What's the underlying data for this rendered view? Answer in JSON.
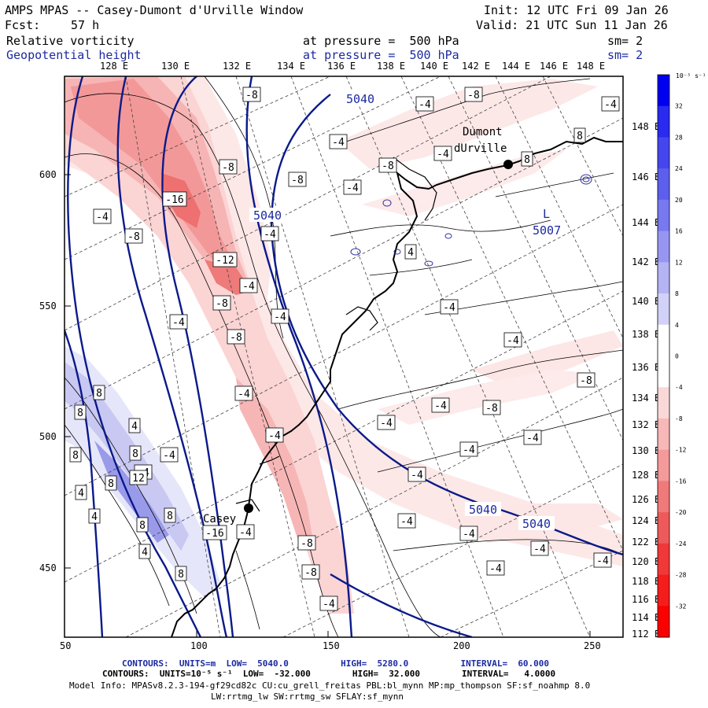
{
  "header": {
    "title": "AMPS MPAS -- Casey-Dumont d'Urville Window",
    "init": "Init: 12 UTC Fri 09 Jan 26",
    "fcst_label": "Fcst:",
    "fcst_value": "57 h",
    "valid": "Valid: 21 UTC Sun 11 Jan 26",
    "field1_name": "Relative vorticity",
    "field1_level": "at pressure =  500 hPa",
    "field1_sm": "sm= 2",
    "field2_name": "Geopotential height",
    "field2_level": "at pressure =  500 hPa",
    "field2_sm": "sm= 2"
  },
  "map": {
    "top_lon_labels": [
      "128 E",
      "130 E",
      "132 E",
      "134 E",
      "136 E",
      "138 E",
      "140 E",
      "142 E",
      "144 E",
      "146 E",
      "148 E"
    ],
    "right_lat_labels": [
      "148 E",
      "146 E",
      "144 E",
      "142 E",
      "140 E",
      "138 E",
      "136 E",
      "134 E",
      "132 E",
      "130 E",
      "128 E",
      "126 E",
      "124 E",
      "122 E",
      "120 E",
      "118 E",
      "116 E",
      "114 E",
      "112 E"
    ],
    "x_ticks": [
      "50",
      "100",
      "150",
      "200",
      "250"
    ],
    "y_ticks": [
      "600",
      "550",
      "500",
      "450"
    ],
    "stations": [
      {
        "name_line1": "Dumont",
        "name_line2": "dUrville"
      },
      {
        "name_line1": "Casey",
        "name_line2": ""
      }
    ],
    "low_label": "L",
    "low_value": "5007",
    "height_labels": [
      "5040",
      "5040",
      "5040",
      "5040"
    ],
    "vort_labels": [
      "-8",
      "-4",
      "-8",
      "-4",
      "-8",
      "-4",
      "-8",
      "-16",
      "-4",
      "-8",
      "-4",
      "-8",
      "-12",
      "-4",
      "-8",
      "-4",
      "-4",
      "-8",
      "-4",
      "-4",
      "-8",
      "-4",
      "-4",
      "-4",
      "-8",
      "-4",
      "-4",
      "-4",
      "-4",
      "-4",
      "-4",
      "-4",
      "-8",
      "-4",
      "-4",
      "-8",
      "-4",
      "-4",
      "-4",
      "-4",
      "8",
      "8",
      "4",
      "8",
      "8",
      "4",
      "8",
      "12",
      "8",
      "4",
      "8",
      "8",
      "4",
      "4",
      "8",
      "8",
      "-16",
      "-4",
      "-4"
    ]
  },
  "colorbar": {
    "unit_label": "10⁻⁵ s⁻¹",
    "ticks": [
      "32",
      "28",
      "24",
      "20",
      "16",
      "12",
      "8",
      "4",
      "0",
      "-4",
      "-8",
      "-12",
      "-16",
      "-20",
      "-24",
      "-28",
      "-32"
    ],
    "colors": [
      "#0000f0",
      "#2a2af0",
      "#4646ee",
      "#5e5eee",
      "#7878f0",
      "#9696f2",
      "#b4b4f4",
      "#d2d2f8",
      "#ffffff",
      "#ffffff",
      "#fbd8d8",
      "#f8b8b8",
      "#f49a9a",
      "#f07a7a",
      "#ee5a5a",
      "#f03838",
      "#f51c1c",
      "#fa0000"
    ]
  },
  "footer": {
    "line1": "CONTOURS:  UNITS=m  LOW=  5040.0          HIGH=  5280.0          INTERVAL=  60.000",
    "line2": "CONTOURS:  UNITS=10⁻⁵ s⁻¹  LOW=  -32.000        HIGH=  32.000        INTERVAL=   4.0000",
    "line3": "Model Info: MPASv8.2.3-194-gf29cd82c CU:cu_grell_freitas PBL:bl_mynn MP:mp_thompson SF:sf_noahmp 8.0",
    "line4": "LW:rrtmg_lw SW:rrtmg_sw SFLAY:sf_mynn"
  }
}
